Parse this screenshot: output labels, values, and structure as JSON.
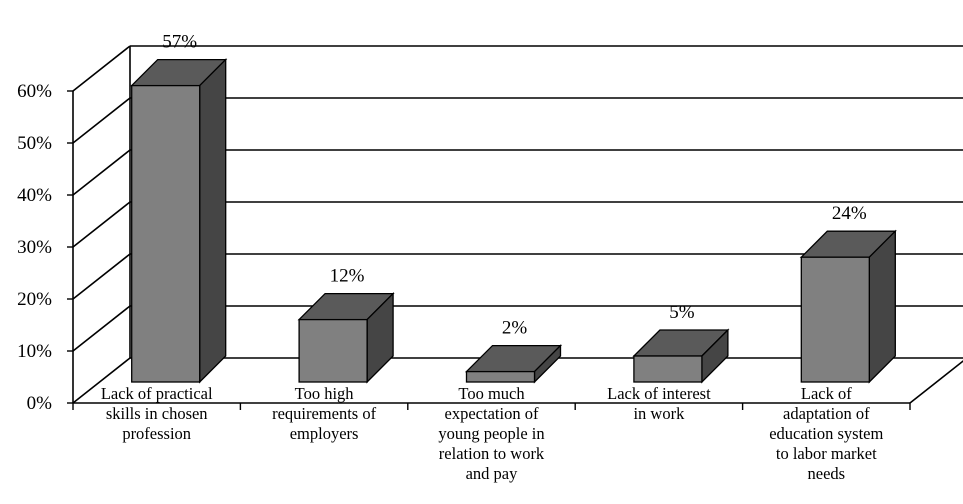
{
  "chart_data": {
    "type": "bar",
    "title": "",
    "xlabel": "",
    "ylabel": "",
    "ylim": [
      0,
      60
    ],
    "grid": true,
    "style": "3d",
    "yticks": [
      "0%",
      "10%",
      "20%",
      "30%",
      "40%",
      "50%",
      "60%"
    ],
    "categories": [
      [
        "Lack of practical",
        "skills in chosen",
        "profession"
      ],
      [
        "Too high",
        "requirements of",
        "employers"
      ],
      [
        "Too much",
        "expectation of",
        "young people in",
        "relation to work",
        "and pay"
      ],
      [
        "Lack of interest",
        "in work"
      ],
      [
        "Lack of",
        "adaptation of",
        "education system",
        "to labor market",
        "needs"
      ]
    ],
    "values": [
      57,
      12,
      2,
      5,
      24
    ],
    "data_labels": [
      "57%",
      "12%",
      "2%",
      "5%",
      "24%"
    ],
    "colors": {
      "bar_front": "#808080",
      "bar_top": "#5a5a5a",
      "bar_side": "#454545",
      "grid": "#000000"
    }
  }
}
